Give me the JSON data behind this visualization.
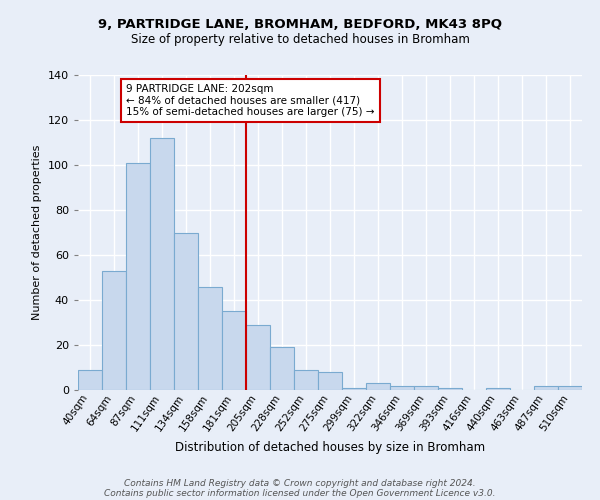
{
  "title": "9, PARTRIDGE LANE, BROMHAM, BEDFORD, MK43 8PQ",
  "subtitle": "Size of property relative to detached houses in Bromham",
  "xlabel": "Distribution of detached houses by size in Bromham",
  "ylabel": "Number of detached properties",
  "bar_color": "#c8d8ed",
  "bar_edge_color": "#7aaad0",
  "background_color": "#e8eef8",
  "grid_color": "#ffffff",
  "annotation_line_color": "#cc0000",
  "annotation_box_color": "#ffffff",
  "annotation_box_edge": "#cc0000",
  "annotation_text": "9 PARTRIDGE LANE: 202sqm\n← 84% of detached houses are smaller (417)\n15% of semi-detached houses are larger (75) →",
  "categories": [
    "40sqm",
    "64sqm",
    "87sqm",
    "111sqm",
    "134sqm",
    "158sqm",
    "181sqm",
    "205sqm",
    "228sqm",
    "252sqm",
    "275sqm",
    "299sqm",
    "322sqm",
    "346sqm",
    "369sqm",
    "393sqm",
    "416sqm",
    "440sqm",
    "463sqm",
    "487sqm",
    "510sqm"
  ],
  "values": [
    9,
    53,
    101,
    112,
    70,
    46,
    35,
    29,
    19,
    9,
    8,
    1,
    3,
    2,
    2,
    1,
    0,
    1,
    0,
    2,
    2
  ],
  "vline_x_index": 7,
  "ylim": [
    0,
    140
  ],
  "yticks": [
    0,
    20,
    40,
    60,
    80,
    100,
    120,
    140
  ],
  "figsize": [
    6.0,
    5.0
  ],
  "dpi": 100,
  "footer_line1": "Contains HM Land Registry data © Crown copyright and database right 2024.",
  "footer_line2": "Contains public sector information licensed under the Open Government Licence v3.0."
}
